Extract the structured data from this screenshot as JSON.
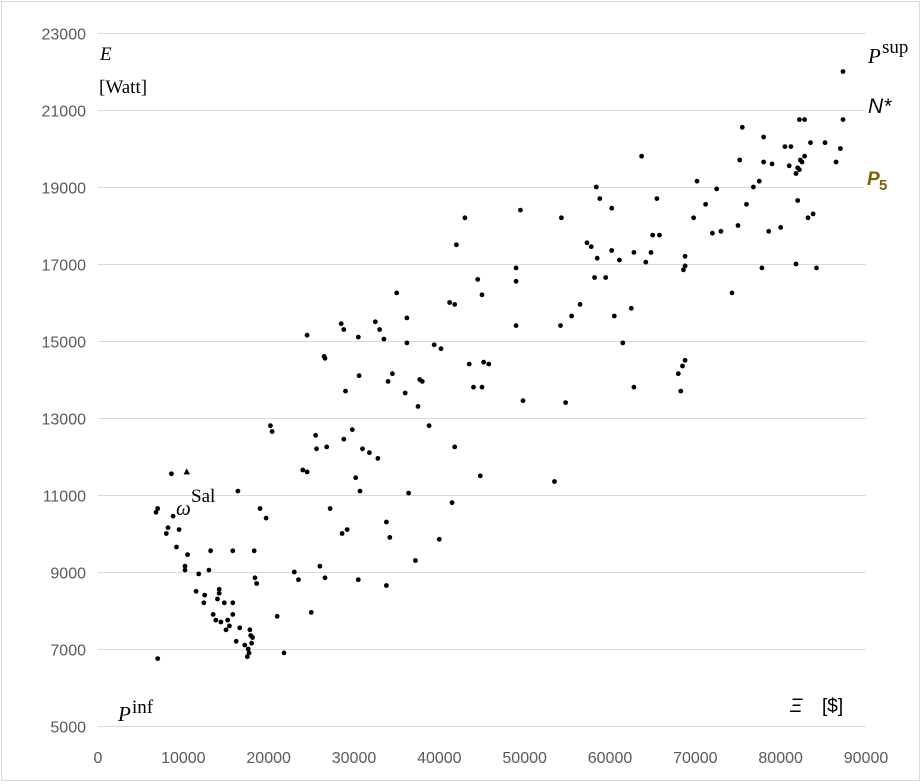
{
  "chart_data": {
    "type": "scatter",
    "title": "",
    "xlim": [
      0,
      90000
    ],
    "ylim": [
      5000,
      23000
    ],
    "x_ticks": [
      0,
      10000,
      20000,
      30000,
      40000,
      50000,
      60000,
      70000,
      80000,
      90000
    ],
    "y_ticks": [
      5000,
      7000,
      9000,
      11000,
      13000,
      15000,
      17000,
      19000,
      21000,
      23000
    ],
    "grid": "horizontal",
    "marker_color": "#000000",
    "y_axis_label": {
      "symbol": "E",
      "unit": "[Watt]"
    },
    "x_axis_label": {
      "symbol": "Ξ",
      "unit": "[$]"
    },
    "annotations": {
      "p_sup": {
        "base": "P",
        "sup": "sup"
      },
      "n_star": "N*",
      "p5": {
        "base": "P",
        "sub": "5"
      },
      "omega_sal": {
        "base": "ω",
        "sup": "Sal"
      },
      "p_inf": {
        "base": "P",
        "sup": "inf"
      }
    },
    "points": [
      [
        7000,
        6750
      ],
      [
        6800,
        10550
      ],
      [
        7000,
        10650
      ],
      [
        8000,
        10000
      ],
      [
        8200,
        10150
      ],
      [
        8800,
        10450
      ],
      [
        8600,
        11550
      ],
      [
        9200,
        9650
      ],
      [
        9500,
        10100
      ],
      [
        10200,
        9150
      ],
      [
        10200,
        9050
      ],
      [
        10500,
        9450
      ],
      [
        11500,
        8500
      ],
      [
        11800,
        8950
      ],
      [
        12400,
        8200
      ],
      [
        12500,
        8400
      ],
      [
        13000,
        9050
      ],
      [
        13200,
        9550
      ],
      [
        13500,
        7900
      ],
      [
        13800,
        7750
      ],
      [
        14000,
        8300
      ],
      [
        14200,
        8550
      ],
      [
        14200,
        8450
      ],
      [
        14400,
        7700
      ],
      [
        14800,
        8200
      ],
      [
        15000,
        7500
      ],
      [
        15200,
        7750
      ],
      [
        15400,
        7600
      ],
      [
        15800,
        8200
      ],
      [
        15800,
        9550
      ],
      [
        15800,
        7900
      ],
      [
        16200,
        7200
      ],
      [
        16400,
        11100
      ],
      [
        16600,
        7550
      ],
      [
        17200,
        7100
      ],
      [
        17500,
        6800
      ],
      [
        17600,
        7000
      ],
      [
        17700,
        6900
      ],
      [
        17800,
        7500
      ],
      [
        17900,
        7350
      ],
      [
        18000,
        7150
      ],
      [
        18100,
        7300
      ],
      [
        18300,
        9550
      ],
      [
        18400,
        8850
      ],
      [
        18600,
        8700
      ],
      [
        19000,
        10650
      ],
      [
        19700,
        10400
      ],
      [
        20200,
        12800
      ],
      [
        20400,
        12650
      ],
      [
        21000,
        7850
      ],
      [
        21800,
        6900
      ],
      [
        23000,
        9000
      ],
      [
        23500,
        8800
      ],
      [
        24000,
        11650
      ],
      [
        24500,
        15150
      ],
      [
        24500,
        11600
      ],
      [
        25000,
        7950
      ],
      [
        25500,
        12550
      ],
      [
        25600,
        12200
      ],
      [
        26000,
        9150
      ],
      [
        26500,
        14600
      ],
      [
        26600,
        14550
      ],
      [
        26600,
        8850
      ],
      [
        26800,
        12250
      ],
      [
        27200,
        10650
      ],
      [
        28500,
        15450
      ],
      [
        28600,
        10000
      ],
      [
        28800,
        12450
      ],
      [
        28800,
        15300
      ],
      [
        29000,
        13700
      ],
      [
        29200,
        10100
      ],
      [
        29800,
        12700
      ],
      [
        30200,
        11450
      ],
      [
        30500,
        15100
      ],
      [
        30500,
        8800
      ],
      [
        30600,
        14100
      ],
      [
        30700,
        11100
      ],
      [
        31000,
        12200
      ],
      [
        31800,
        12100
      ],
      [
        32500,
        15500
      ],
      [
        32800,
        11950
      ],
      [
        33000,
        15300
      ],
      [
        33500,
        15050
      ],
      [
        33800,
        10300
      ],
      [
        33800,
        8650
      ],
      [
        34000,
        13950
      ],
      [
        34200,
        9900
      ],
      [
        34500,
        14150
      ],
      [
        35000,
        16250
      ],
      [
        36000,
        13650
      ],
      [
        36200,
        15600
      ],
      [
        36200,
        14950
      ],
      [
        36400,
        11050
      ],
      [
        37200,
        9300
      ],
      [
        37500,
        13300
      ],
      [
        37700,
        14000
      ],
      [
        38000,
        13950
      ],
      [
        38800,
        12800
      ],
      [
        39400,
        14900
      ],
      [
        40000,
        9850
      ],
      [
        40200,
        14800
      ],
      [
        41200,
        16000
      ],
      [
        41500,
        10800
      ],
      [
        41800,
        12250
      ],
      [
        41800,
        15950
      ],
      [
        42000,
        17500
      ],
      [
        43000,
        18200
      ],
      [
        43500,
        14400
      ],
      [
        44000,
        13800
      ],
      [
        44500,
        16600
      ],
      [
        44800,
        11500
      ],
      [
        45000,
        16200
      ],
      [
        45000,
        13800
      ],
      [
        45200,
        14450
      ],
      [
        45800,
        14400
      ],
      [
        49000,
        15400
      ],
      [
        49000,
        16550
      ],
      [
        49000,
        16900
      ],
      [
        49500,
        18400
      ],
      [
        49800,
        13450
      ],
      [
        53500,
        11350
      ],
      [
        54200,
        15400
      ],
      [
        54300,
        18200
      ],
      [
        54800,
        13400
      ],
      [
        55500,
        15650
      ],
      [
        56500,
        15950
      ],
      [
        57300,
        17550
      ],
      [
        57800,
        17450
      ],
      [
        58200,
        16650
      ],
      [
        58400,
        19000
      ],
      [
        58500,
        17150
      ],
      [
        58800,
        18700
      ],
      [
        59500,
        16650
      ],
      [
        60200,
        17350
      ],
      [
        60200,
        18450
      ],
      [
        60500,
        15650
      ],
      [
        61100,
        17100
      ],
      [
        61500,
        14950
      ],
      [
        62500,
        15850
      ],
      [
        62800,
        17300
      ],
      [
        62800,
        13800
      ],
      [
        63700,
        19800
      ],
      [
        64200,
        17050
      ],
      [
        64800,
        17300
      ],
      [
        65000,
        17750
      ],
      [
        65500,
        18700
      ],
      [
        65800,
        17750
      ],
      [
        68000,
        14150
      ],
      [
        68300,
        13700
      ],
      [
        68500,
        14350
      ],
      [
        68600,
        16850
      ],
      [
        68800,
        17200
      ],
      [
        68800,
        14500
      ],
      [
        68800,
        16950
      ],
      [
        69800,
        18200
      ],
      [
        70200,
        19150
      ],
      [
        71200,
        18550
      ],
      [
        72000,
        17800
      ],
      [
        72500,
        18950
      ],
      [
        73000,
        17850
      ],
      [
        74300,
        16250
      ],
      [
        75000,
        18000
      ],
      [
        75200,
        19700
      ],
      [
        75500,
        20550
      ],
      [
        76000,
        18550
      ],
      [
        76800,
        19000
      ],
      [
        77500,
        19150
      ],
      [
        77800,
        16900
      ],
      [
        78000,
        20300
      ],
      [
        78000,
        19650
      ],
      [
        78600,
        17850
      ],
      [
        79000,
        19600
      ],
      [
        80000,
        17950
      ],
      [
        80500,
        20050
      ],
      [
        81000,
        19550
      ],
      [
        81200,
        20050
      ],
      [
        81800,
        19350
      ],
      [
        81800,
        17000
      ],
      [
        82000,
        19500
      ],
      [
        82000,
        18650
      ],
      [
        82200,
        20750
      ],
      [
        82200,
        19450
      ],
      [
        82300,
        19700
      ],
      [
        82500,
        19650
      ],
      [
        82800,
        20750
      ],
      [
        82800,
        19800
      ],
      [
        83200,
        18200
      ],
      [
        83500,
        20150
      ],
      [
        83800,
        18300
      ],
      [
        84200,
        16900
      ],
      [
        85200,
        20150
      ],
      [
        86500,
        19650
      ],
      [
        87000,
        20000
      ],
      [
        87300,
        20750
      ],
      [
        87300,
        22000
      ]
    ],
    "triangle_point": [
      10400,
      11600
    ]
  }
}
